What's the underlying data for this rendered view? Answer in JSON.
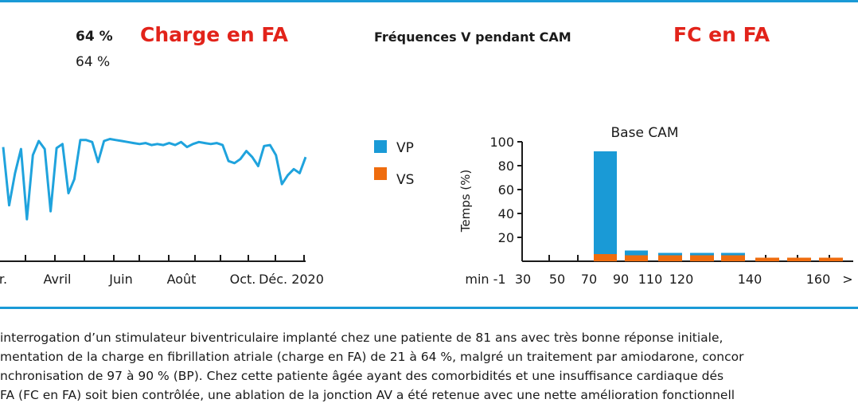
{
  "colors": {
    "rule": "#1a9ad6",
    "title_red": "#e2231a",
    "line": "#1fa3dd",
    "vp": "#1a9ad6",
    "vs": "#ef6c0e",
    "axis": "#1a1a1a"
  },
  "header": {
    "pct_bold": "64 %",
    "pct_regular": "64 %",
    "charge_title": "Charge en FA",
    "freq_title": "Fréquences V pendant CAM",
    "fc_title": "FC en FA"
  },
  "chart_data": [
    {
      "type": "line",
      "x_tick_labels": [
        "r.",
        "Avril",
        "Juin",
        "Août",
        "Oct.",
        "Déc. 2020"
      ],
      "series": [
        {
          "values": [
            90,
            32,
            64,
            88,
            18,
            82,
            96,
            88,
            26,
            89,
            93,
            44,
            58,
            97,
            97,
            95,
            75,
            96,
            98,
            97,
            96,
            95,
            94,
            93,
            94,
            92,
            93,
            92,
            94,
            92,
            95,
            90,
            93,
            95,
            94,
            93,
            94,
            92,
            76,
            74,
            78,
            86,
            80,
            71,
            91,
            92,
            82,
            53,
            62,
            68,
            64,
            80
          ]
        }
      ]
    },
    {
      "type": "bar",
      "title": "Base CAM",
      "ylabel": "Temps (%)",
      "y_ticks": [
        20,
        40,
        60,
        80,
        100
      ],
      "ylim": [
        0,
        100
      ],
      "x_tick_labels": [
        "min -1",
        "30",
        "50",
        "70",
        "90",
        "110",
        "120",
        "140",
        "160",
        ">"
      ],
      "categories": [
        "70-90",
        "90-110",
        "110-120",
        "120-130",
        "130-140",
        "140-150",
        "150-160",
        "160-170"
      ],
      "series": [
        {
          "name": "VP",
          "values": [
            86,
            4,
            2,
            2,
            2,
            0,
            0,
            0
          ]
        },
        {
          "name": "VS",
          "values": [
            6,
            5,
            5,
            5,
            5,
            3,
            3,
            3
          ]
        }
      ],
      "legend": [
        "VP",
        "VS"
      ]
    }
  ],
  "caption": {
    "lines": [
      "interrogation d’un stimulateur biventriculaire implanté chez une patiente de 81 ans avec très bonne réponse initiale,",
      "mentation de la charge en fibrillation atriale (charge en FA) de 21 à 64 %, malgré un traitement par amiodarone, concor",
      "nchronisation de 97 à 90 % (BP). Chez cette patiente âgée ayant des comorbidités et une insuffisance cardiaque dés",
      " FA (FC en FA) soit bien contrôlée, une ablation de la jonction AV a été retenue avec une nette amélioration fonctionnell"
    ]
  }
}
